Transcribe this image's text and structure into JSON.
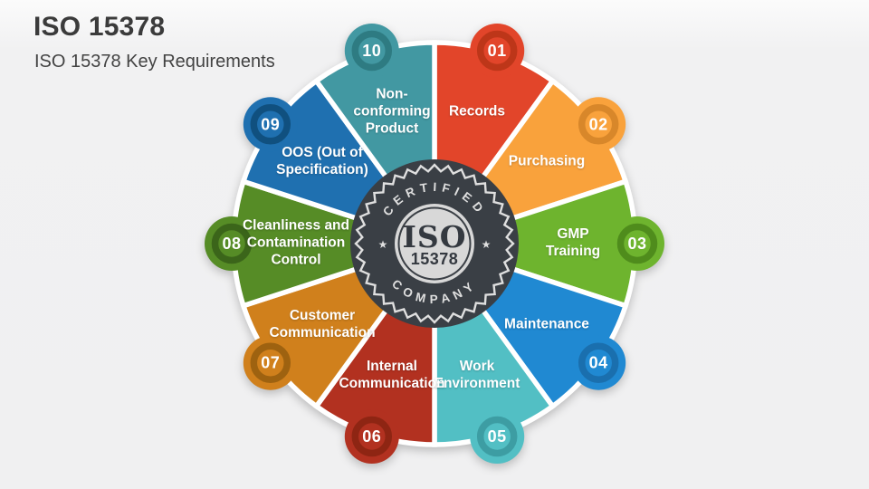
{
  "slide": {
    "title": "ISO 15378",
    "subtitle": "ISO 15378 Key Requirements",
    "background": "#F1F1F1"
  },
  "center_badge": {
    "top_text": "CERTIFIED",
    "iso": "ISO",
    "code": "15378",
    "bottom_text": "COMPANY",
    "star": "★",
    "dark_color": "#3A3F45",
    "light_color": "#DFDFDF",
    "disc_color": "#D8D8D8"
  },
  "wheel": {
    "outline_color": "#FFFFFF",
    "segments": [
      {
        "number": "01",
        "label": "Records",
        "color": "#E2452A",
        "ring": "#BD3619"
      },
      {
        "number": "02",
        "label": "Purchasing",
        "color": "#F9A23C",
        "ring": "#D8872A"
      },
      {
        "number": "03",
        "label": "GMP Training",
        "color": "#6EB42E",
        "ring": "#4F8C1C"
      },
      {
        "number": "04",
        "label": "Maintenance",
        "color": "#2089D2",
        "ring": "#1A6FAE"
      },
      {
        "number": "05",
        "label": "Work Environment",
        "color": "#52BFC4",
        "ring": "#3D9DA3"
      },
      {
        "number": "06",
        "label": "Internal Communication",
        "color": "#B23120",
        "ring": "#8E2513"
      },
      {
        "number": "07",
        "label": "Customer Communication",
        "color": "#D0801C",
        "ring": "#9E6210"
      },
      {
        "number": "08",
        "label": "Cleanliness and Contamination Control",
        "color": "#568C26",
        "ring": "#3B651A"
      },
      {
        "number": "09",
        "label": "OOS (Out of Specification)",
        "color": "#1F70B0",
        "ring": "#10507F"
      },
      {
        "number": "10",
        "label": "Non-conforming Product",
        "color": "#4298A2",
        "ring": "#2E7B82"
      }
    ]
  }
}
